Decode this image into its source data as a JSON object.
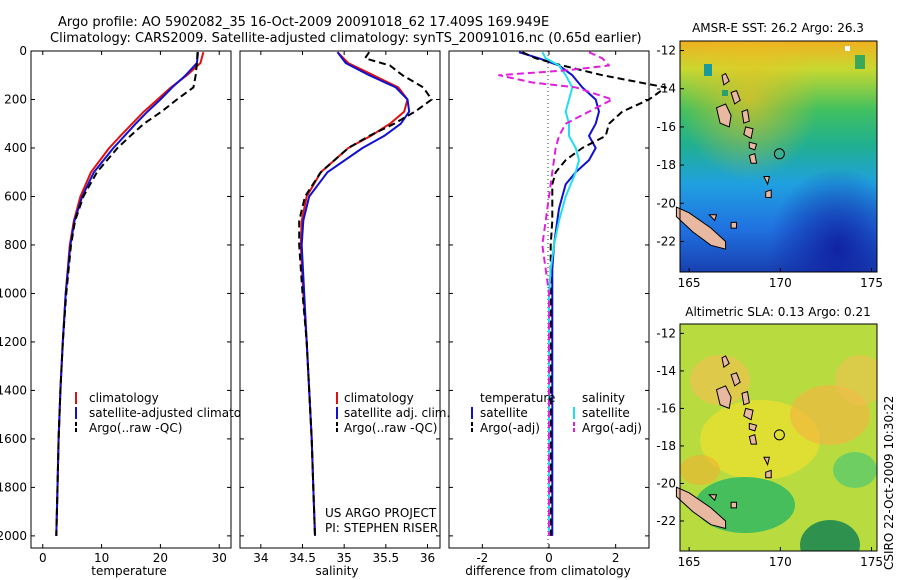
{
  "header": {
    "line1": "Argo profile: AO 5902082_35 16-Oct-2009 20091018_62 17.409S 169.949E",
    "line2": "Climatology: CARS2009. Satellite-adjusted climatology: synTS_20091016.nc (0.65d earlier)"
  },
  "colors": {
    "climatology": "#e01010",
    "satellite": "#1010d0",
    "argo": "#000000",
    "satellite_salinity": "#20e0f0",
    "argo_salinity": "#e020e0",
    "land": "#e8b8a0"
  },
  "chart_data": [
    {
      "type": "line",
      "title": "",
      "xlabel": "temperature",
      "ylabel": "",
      "xlim": [
        -2,
        32
      ],
      "ylim": [
        2050,
        0
      ],
      "xticks": [
        "0",
        "10",
        "20",
        "30"
      ],
      "xtick_values": [
        0,
        10,
        20,
        30
      ],
      "yticks": [
        "0",
        "200",
        "400",
        "600",
        "800",
        "1000",
        "1200",
        "1400",
        "1600",
        "1800",
        "2000"
      ],
      "ytick_values": [
        0,
        200,
        400,
        600,
        800,
        1000,
        1200,
        1400,
        1600,
        1800,
        2000
      ],
      "legend": {
        "position": "center-right",
        "entries": [
          "climatology",
          "satellite-adjusted climatology",
          "Argo(..raw -QC)"
        ]
      },
      "series": [
        {
          "name": "climatology",
          "color_key": "climatology",
          "dash": false,
          "depth": [
            5,
            50,
            100,
            150,
            200,
            250,
            300,
            350,
            400,
            500,
            600,
            700,
            800,
            1000,
            1200,
            1400,
            1600,
            1800,
            2000
          ],
          "values": [
            27.3,
            26.8,
            24.5,
            21.8,
            19.5,
            17.2,
            15.2,
            13.2,
            11.3,
            8.2,
            6.4,
            5.3,
            4.6,
            3.9,
            3.4,
            3.0,
            2.7,
            2.5,
            2.3
          ]
        },
        {
          "name": "satellite-adjusted climatology",
          "color_key": "satellite",
          "dash": false,
          "depth": [
            5,
            50,
            100,
            150,
            200,
            250,
            300,
            350,
            400,
            500,
            600,
            700,
            800,
            1000,
            1200,
            1400,
            1600,
            1800,
            2000
          ],
          "values": [
            26.4,
            26.2,
            24.3,
            22.0,
            20.0,
            17.8,
            15.8,
            13.9,
            12.0,
            8.7,
            6.7,
            5.4,
            4.7,
            3.9,
            3.4,
            3.0,
            2.7,
            2.5,
            2.3
          ]
        },
        {
          "name": "Argo(..raw -QC)",
          "color_key": "argo",
          "dash": true,
          "depth": [
            5,
            50,
            100,
            150,
            200,
            250,
            300,
            350,
            400,
            500,
            600,
            700,
            800,
            1000,
            1200,
            1400,
            1600,
            1800,
            2000
          ],
          "values": [
            26.3,
            26.2,
            26.0,
            25.6,
            22.8,
            20.2,
            17.2,
            14.9,
            12.7,
            9.2,
            6.9,
            5.5,
            4.8,
            4.0,
            3.4,
            3.0,
            2.7,
            2.5,
            2.3
          ]
        }
      ]
    },
    {
      "type": "line",
      "title": "",
      "xlabel": "salinity",
      "ylabel": "",
      "xlim": [
        33.75,
        36.15
      ],
      "ylim": [
        2050,
        0
      ],
      "xticks": [
        "34",
        "34.5",
        "35",
        "35.5",
        "36"
      ],
      "xtick_values": [
        34,
        34.5,
        35,
        35.5,
        36
      ],
      "legend": {
        "position": "center-right",
        "entries": [
          "climatology",
          "satellite adj. clim.",
          "Argo(..raw -QC)"
        ]
      },
      "annotation": [
        "US ARGO PROJECT",
        "PI: STEPHEN RISER"
      ],
      "series": [
        {
          "name": "climatology",
          "color_key": "climatology",
          "dash": false,
          "depth": [
            5,
            50,
            100,
            150,
            200,
            250,
            300,
            350,
            400,
            500,
            600,
            700,
            800,
            1000,
            1200,
            1400,
            1600,
            1800,
            2000
          ],
          "values": [
            34.92,
            35.05,
            35.35,
            35.65,
            35.76,
            35.72,
            35.55,
            35.32,
            35.05,
            34.72,
            34.55,
            34.49,
            34.48,
            34.51,
            34.55,
            34.58,
            34.61,
            34.63,
            34.65
          ]
        },
        {
          "name": "satellite adj. clim.",
          "color_key": "satellite",
          "dash": false,
          "depth": [
            5,
            50,
            100,
            150,
            200,
            250,
            300,
            350,
            400,
            500,
            600,
            700,
            800,
            1000,
            1200,
            1400,
            1600,
            1800,
            2000
          ],
          "values": [
            34.92,
            35.02,
            35.3,
            35.62,
            35.76,
            35.78,
            35.68,
            35.48,
            35.22,
            34.8,
            34.58,
            34.51,
            34.49,
            34.52,
            34.55,
            34.58,
            34.61,
            34.63,
            34.65
          ]
        },
        {
          "name": "Argo(..raw -QC)",
          "color_key": "argo",
          "dash": true,
          "depth": [
            5,
            30,
            60,
            100,
            150,
            200,
            250,
            300,
            350,
            400,
            500,
            600,
            700,
            800,
            1000,
            1200,
            1400,
            1600,
            1800,
            2000
          ],
          "values": [
            35.3,
            35.25,
            35.55,
            35.7,
            35.95,
            36.05,
            35.85,
            35.6,
            35.3,
            35.05,
            34.72,
            34.53,
            34.46,
            34.46,
            34.5,
            34.55,
            34.58,
            34.61,
            34.63,
            34.65
          ]
        }
      ]
    },
    {
      "type": "line",
      "title": "",
      "xlabel": "difference from climatology",
      "ylabel": "",
      "xlim": [
        -3.0,
        3.0
      ],
      "ylim": [
        2050,
        0
      ],
      "xticks": [
        "-2",
        "0",
        "2"
      ],
      "xtick_values": [
        -2,
        0,
        2
      ],
      "legend": {
        "position": "center",
        "group_titles": [
          "temperature",
          "salinity"
        ],
        "entries": [
          "satellite",
          "Argo(-adj)",
          "satellite",
          "Argo(-adj)"
        ]
      },
      "series": [
        {
          "name": "temperature satellite",
          "color_key": "satellite",
          "dash": false,
          "depth": [
            5,
            30,
            60,
            100,
            150,
            200,
            250,
            300,
            350,
            400,
            450,
            500,
            550,
            600,
            650,
            700,
            800,
            900,
            1000,
            1200,
            1400,
            1600,
            1800,
            2000
          ],
          "values": [
            -0.9,
            -0.3,
            0.3,
            0.7,
            1.0,
            1.4,
            1.5,
            1.4,
            1.2,
            1.4,
            1.2,
            0.8,
            0.5,
            0.4,
            0.3,
            0.25,
            0.15,
            0.1,
            0.1,
            0.1,
            0.1,
            0.1,
            0.1,
            0.1
          ]
        },
        {
          "name": "temperature Argo(-adj)",
          "color_key": "argo",
          "dash": true,
          "depth": [
            5,
            30,
            60,
            100,
            150,
            200,
            250,
            300,
            350,
            400,
            450,
            500,
            550,
            600,
            650,
            700,
            800,
            900,
            1000,
            1200,
            1400,
            1600,
            1800,
            2000
          ],
          "values": [
            -0.8,
            -0.4,
            0.4,
            1.6,
            3.5,
            3.0,
            2.2,
            1.8,
            1.7,
            1.0,
            0.5,
            0.2,
            0.1,
            0.1,
            0.1,
            0.1,
            0.05,
            0.05,
            0.05,
            0.05,
            0.05,
            0.05,
            0.05,
            0.05
          ]
        },
        {
          "name": "salinity satellite",
          "color_key": "satellite_salinity",
          "dash": false,
          "depth": [
            5,
            30,
            60,
            100,
            150,
            200,
            250,
            300,
            350,
            400,
            450,
            500,
            600,
            700,
            800,
            900,
            1000,
            1200,
            1400,
            1600,
            1800,
            2000
          ],
          "values": [
            -0.2,
            -0.1,
            0.3,
            0.5,
            0.7,
            0.6,
            0.5,
            0.6,
            0.6,
            0.8,
            0.9,
            0.8,
            0.5,
            0.3,
            0.15,
            0.05,
            0.0,
            0.0,
            0.0,
            0.0,
            0.0,
            0.0
          ]
        },
        {
          "name": "salinity Argo(-adj)",
          "color_key": "argo_salinity",
          "dash": true,
          "depth": [
            5,
            30,
            60,
            80,
            100,
            130,
            150,
            200,
            250,
            300,
            350,
            400,
            500,
            600,
            700,
            800,
            900,
            1000,
            1200,
            1400,
            1600,
            1800,
            2000
          ],
          "values": [
            1.2,
            1.6,
            1.8,
            0.5,
            -1.5,
            -0.5,
            0.8,
            1.9,
            1.2,
            0.5,
            0.3,
            0.2,
            0.1,
            0.0,
            -0.1,
            -0.2,
            -0.1,
            0.0,
            0.0,
            0.0,
            0.0,
            0.0,
            0.0
          ]
        }
      ]
    },
    {
      "type": "heatmap",
      "title": "AMSR-E SST: 26.2 Argo: 26.3",
      "xlabel": "",
      "ylabel": "",
      "xlim": [
        164.5,
        175.3
      ],
      "ylim": [
        -23.6,
        -11.5
      ],
      "xticks": [
        "165",
        "170",
        "175"
      ],
      "xtick_values": [
        165,
        170,
        175
      ],
      "yticks": [
        "-12",
        "-14",
        "-16",
        "-18",
        "-20",
        "-22"
      ],
      "ytick_values": [
        -12,
        -14,
        -16,
        -18,
        -20,
        -22
      ],
      "marker": {
        "lon": 169.949,
        "lat": -17.409
      }
    },
    {
      "type": "heatmap",
      "title": "Altimetric SLA: 0.13 Argo: 0.21",
      "xlabel": "",
      "ylabel": "",
      "xlim": [
        164.5,
        175.3
      ],
      "ylim": [
        -23.6,
        -11.5
      ],
      "xticks": [
        "165",
        "170",
        "175"
      ],
      "xtick_values": [
        165,
        170,
        175
      ],
      "yticks": [
        "-12",
        "-14",
        "-16",
        "-18",
        "-20",
        "-22"
      ],
      "ytick_values": [
        -12,
        -14,
        -16,
        -18,
        -20,
        -22
      ],
      "marker": {
        "lon": 169.949,
        "lat": -17.409
      }
    }
  ],
  "footer_stamp": "CSIRO 22-Oct-2009 10:30:22"
}
